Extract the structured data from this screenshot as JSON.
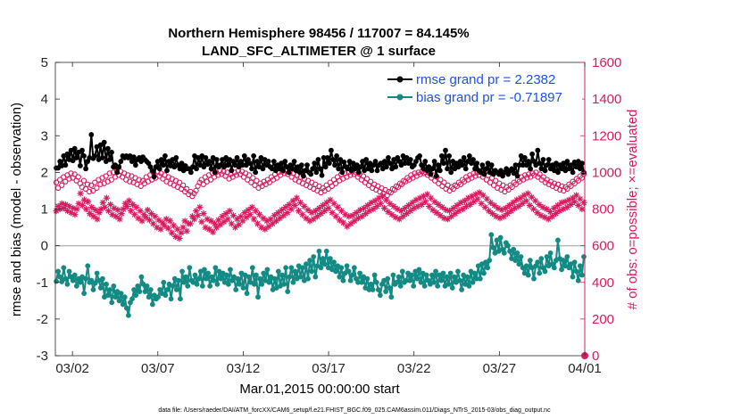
{
  "chart_data": {
    "type": "line",
    "title": "Northern Hemisphere 98456 / 117007 = 84.145%",
    "subtitle": "LAND_SFC_ALTIMETER @ 1 surface",
    "xlabel": "Mar.01,2015 00:00:00 start",
    "ylabel": "rmse and bias (model - observation)",
    "y2label": "# of obs: o=possible; ×=evaluated",
    "footer": "data file: /Users/raeder/DAI/ATM_forcXX/CAM6_setup/f.e21.FHIST_BGC.f09_025.CAM6assim.011/Diags_NTrS_2015-03/obs_diag_output.nc",
    "x_day_range": [
      0,
      31
    ],
    "xticks": [
      {
        "day": 1,
        "label": "03/02"
      },
      {
        "day": 6,
        "label": "03/07"
      },
      {
        "day": 11,
        "label": "03/12"
      },
      {
        "day": 16,
        "label": "03/17"
      },
      {
        "day": 21,
        "label": "03/22"
      },
      {
        "day": 26,
        "label": "03/27"
      },
      {
        "day": 31,
        "label": "04/01"
      }
    ],
    "ylim": [
      -3,
      5
    ],
    "yticks": [
      "-3",
      "-2",
      "-1",
      "0",
      "1",
      "2",
      "3",
      "4",
      "5"
    ],
    "y2lim": [
      0,
      1600
    ],
    "y2ticks": [
      "0",
      "200",
      "400",
      "600",
      "800",
      "1000",
      "1200",
      "1400",
      "1600"
    ],
    "zero_line": 0,
    "colors": {
      "rmse": "#000000",
      "bias": "#138a84",
      "obs": "#d81b60",
      "zero": "#b8b8b8",
      "legend_text": "#1f52e0"
    },
    "legend": {
      "position": "top-right",
      "entries": [
        "rmse grand pr = 2.2382",
        "bias grand pr = -0.71897"
      ]
    },
    "series": [
      {
        "name": "rmse",
        "axis": "left",
        "marker": "filled-circle",
        "values": [
          2.12,
          2.12,
          2.3,
          2.18,
          2.45,
          2.2,
          2.5,
          2.35,
          2.6,
          2.32,
          2.65,
          2.4,
          2.55,
          2.18,
          2.6,
          2.45,
          2.1,
          2.3,
          2.4,
          3.03,
          2.38,
          2.45,
          2.7,
          2.35,
          2.75,
          2.4,
          2.82,
          2.3,
          2.65,
          2.35,
          2.55,
          2.15,
          2.2,
          2.0,
          2.15,
          2.3,
          2.45,
          2.4,
          2.45,
          2.4,
          2.45,
          2.3,
          2.42,
          2.2,
          2.35,
          2.4,
          2.3,
          2.42,
          2.35,
          2.3,
          2.25,
          2.15,
          2.05,
          1.88,
          2.15,
          2.3,
          2.1,
          2.35,
          2.2,
          2.45,
          2.05,
          2.3,
          2.18,
          2.35,
          2.15,
          2.4,
          2.2,
          2.1,
          2.25,
          2.05,
          2.18,
          2.1,
          2.1,
          2.0,
          2.15,
          2.45,
          2.1,
          2.4,
          2.2,
          2.45,
          2.15,
          2.4,
          2.22,
          2.3,
          2.1,
          2.4,
          2.0,
          2.35,
          2.15,
          2.2,
          2.35,
          2.15,
          2.4,
          2.2,
          2.35,
          2.05,
          2.3,
          2.2,
          2.4,
          2.15,
          2.3,
          2.2,
          2.45,
          2.2,
          2.35,
          2.25,
          2.1,
          2.45,
          2.0,
          2.3,
          2.15,
          2.4,
          2.1,
          2.35,
          2.2,
          2.3,
          2.15,
          2.1,
          2.3,
          2.05,
          2.2,
          2.1,
          2.25,
          2.05,
          2.3,
          2.15,
          2.0,
          2.2,
          2.1,
          2.3,
          2.05,
          2.15,
          2.0,
          2.2,
          1.9,
          2.05,
          2.2,
          2.0,
          1.95,
          2.1,
          2.25,
          2.0,
          2.35,
          2.1,
          1.92,
          2.4,
          2.15,
          2.4,
          2.25,
          2.6,
          2.35,
          2.2,
          2.45,
          2.1,
          2.35,
          2.0,
          2.28,
          2.15,
          2.1,
          2.3,
          2.05,
          2.25,
          2.1,
          2.2,
          2.0,
          2.15,
          2.3,
          2.05,
          2.35,
          2.1,
          2.25,
          2.05,
          2.2,
          2.3,
          2.05,
          2.2,
          2.25,
          2.1,
          2.3,
          2.15,
          2.4,
          2.25,
          2.1,
          2.35,
          2.15,
          2.4,
          2.3,
          2.2,
          2.45,
          2.25,
          2.4,
          2.25,
          2.35,
          2.15,
          2.2,
          2.3,
          2.4,
          2.45,
          2.2,
          2.1,
          2.3,
          2.05,
          2.15,
          1.95,
          2.1,
          2.3,
          1.9,
          2.2,
          2.05,
          2.45,
          2.25,
          2.6,
          2.1,
          2.45,
          2.0,
          2.3,
          2.1,
          2.25,
          2.15,
          2.3,
          2.2,
          2.4,
          2.1,
          2.3,
          2.45,
          2.25,
          2.35,
          2.1,
          2.25,
          2.05,
          2.0,
          2.2,
          1.95,
          2.1,
          2.25,
          2.0,
          2.2,
          1.95,
          2.05,
          2.0,
          1.95,
          2.05,
          1.9,
          2.0,
          2.1,
          1.95,
          2.05,
          2.1,
          1.98,
          2.2,
          1.9,
          2.2,
          2.45,
          2.2,
          2.4,
          2.2,
          2.3,
          2.1,
          2.5,
          2.3,
          2.2,
          2.6,
          2.25,
          2.1,
          2.35,
          2.05,
          2.2,
          2.35,
          2.1,
          2.2,
          2.05,
          2.25,
          2.0,
          2.2,
          2.1,
          2.25,
          2.05,
          2.3,
          2.1,
          2.2,
          2.0,
          2.28,
          2.15,
          2.3,
          2.1,
          2.25,
          2.0
        ]
      },
      {
        "name": "bias",
        "axis": "left",
        "marker": "filled-circle",
        "values": [
          -0.97,
          -0.7,
          -0.85,
          -0.98,
          -0.6,
          -0.9,
          -1.05,
          -0.7,
          -0.85,
          -0.95,
          -0.8,
          -1.1,
          -0.9,
          -1.0,
          -0.85,
          -1.3,
          -0.9,
          -0.55,
          -1.0,
          -0.95,
          -1.2,
          -1.02,
          -0.75,
          -0.95,
          -1.15,
          -0.9,
          -1.4,
          -1.05,
          -1.35,
          -1.2,
          -1.55,
          -1.1,
          -1.4,
          -1.25,
          -1.5,
          -1.3,
          -1.6,
          -1.4,
          -1.7,
          -1.9,
          -1.55,
          -1.45,
          -1.2,
          -1.35,
          -1.1,
          -1.25,
          -0.85,
          -1.05,
          -1.25,
          -1.1,
          -1.4,
          -1.2,
          -1.6,
          -1.35,
          -1.45,
          -1.4,
          -1.2,
          -1.3,
          -1.0,
          -1.35,
          -1.2,
          -1.05,
          -1.45,
          -1.1,
          -0.9,
          -1.2,
          -0.95,
          -1.45,
          -0.7,
          -1.0,
          -0.85,
          -1.1,
          -0.6,
          -0.95,
          -1.0,
          -0.8,
          -1.05,
          -0.9,
          -0.7,
          -1.1,
          -0.65,
          -0.9,
          -0.75,
          -1.1,
          -0.85,
          -0.95,
          -0.6,
          -1.05,
          -0.7,
          -0.9,
          -0.75,
          -1.0,
          -0.8,
          -1.05,
          -0.65,
          -0.95,
          -0.85,
          -1.2,
          -0.9,
          -1.05,
          -0.75,
          -1.15,
          -0.8,
          -1.3,
          -0.85,
          -1.0,
          -0.6,
          -1.05,
          -0.8,
          -1.4,
          -0.9,
          -1.05,
          -0.75,
          -0.95,
          -0.65,
          -1.0,
          -0.85,
          -1.2,
          -0.9,
          -1.15,
          -0.7,
          -1.1,
          -0.8,
          -1.05,
          -0.6,
          -1.25,
          -0.85,
          -0.6,
          -1.0,
          -0.7,
          -0.9,
          -0.55,
          -0.85,
          -0.6,
          -0.95,
          -0.5,
          -0.9,
          -0.4,
          -0.7,
          -0.3,
          -0.85,
          -0.55,
          -0.15,
          -0.6,
          -0.35,
          -0.5,
          -0.15,
          -0.6,
          -0.35,
          -0.65,
          -0.45,
          -0.7,
          -0.55,
          -0.85,
          -0.6,
          -0.95,
          -0.75,
          -0.55,
          -0.7,
          -0.95,
          -0.8,
          -0.6,
          -0.9,
          -1.0,
          -0.75,
          -1.0,
          -0.85,
          -1.15,
          -0.9,
          -1.2,
          -1.05,
          -1.2,
          -0.8,
          -1.0,
          -1.2,
          -1.35,
          -1.05,
          -0.95,
          -1.25,
          -0.9,
          -1.15,
          -1.4,
          -0.8,
          -1.05,
          -1.0,
          -0.85,
          -1.1,
          -0.7,
          -1.0,
          -0.95,
          -0.75,
          -0.95,
          -0.8,
          -1.1,
          -0.7,
          -0.9,
          -0.65,
          -1.0,
          -0.75,
          -1.1,
          -0.8,
          -0.95,
          -1.05,
          -0.8,
          -1.0,
          -0.7,
          -1.1,
          -0.8,
          -0.95,
          -0.75,
          -1.1,
          -0.85,
          -1.05,
          -0.75,
          -1.15,
          -0.85,
          -1.0,
          -0.7,
          -0.95,
          -1.2,
          -0.8,
          -1.05,
          -0.85,
          -1.1,
          -0.7,
          -1.0,
          -0.75,
          -0.9,
          -0.55,
          -0.9,
          -0.5,
          -0.75,
          -0.45,
          -0.6,
          -0.4,
          0.3,
          -0.05,
          -0.2,
          0.15,
          -0.15,
          0.22,
          -0.1,
          -0.2,
          0.08,
          0.0,
          -0.15,
          -0.35,
          -0.1,
          -0.4,
          -0.2,
          -0.5,
          -0.3,
          -0.6,
          -0.75,
          -0.55,
          -0.8,
          -0.4,
          -0.6,
          -0.9,
          -0.55,
          -0.45,
          -0.75,
          -0.35,
          -0.6,
          -0.7,
          -0.3,
          -0.55,
          -0.2,
          -0.5,
          -0.6,
          -0.4,
          0.15,
          -0.35,
          -0.65,
          -0.4,
          -0.55,
          -0.3,
          -0.6,
          -0.5,
          -0.85,
          -0.45,
          -0.7,
          -0.95,
          -0.55,
          -0.8,
          -0.3
        ]
      },
      {
        "name": "obs possible",
        "axis": "right",
        "marker": "open-circle",
        "values": [
          945,
          915,
          960,
          930,
          975,
          950,
          985,
          965,
          995,
          970,
          990,
          955,
          975,
          940,
          920,
          955,
          910,
          935,
          895,
          930,
          900,
          945,
          915,
          960,
          935,
          970,
          940,
          980,
          950,
          995,
          960,
          1000,
          975,
          1010,
          985,
          1005,
          975,
          995,
          960,
          985,
          950,
          980,
          945,
          970,
          935,
          960,
          925,
          955,
          940,
          975,
          950,
          985,
          960,
          995,
          970,
          1005,
          980,
          995,
          965,
          985,
          950,
          975,
          940,
          965,
          930,
          955,
          920,
          945,
          910,
          930,
          895,
          910,
          880,
          895,
          870,
          885,
          900,
          925,
          945,
          960,
          935,
          975,
          950,
          985,
          960,
          995,
          975,
          1000,
          985,
          1010,
          990,
          1005,
          980,
          1000,
          965,
          990,
          975,
          1000,
          985,
          1010,
          990,
          1005,
          975,
          995,
          960,
          985,
          945,
          970,
          930,
          955,
          915,
          940,
          925,
          950,
          935,
          960,
          945,
          975,
          960,
          990,
          970,
          1000,
          985,
          1005,
          995,
          1010,
          990,
          1000,
          975,
          995,
          960,
          985,
          950,
          975,
          940,
          965,
          930,
          955,
          920,
          945,
          910,
          935,
          900,
          925,
          890,
          915,
          900,
          930,
          910,
          945,
          925,
          960,
          940,
          975,
          955,
          990,
          965,
          995,
          975,
          1000,
          985,
          1005,
          990,
          1000,
          975,
          990,
          960,
          980,
          945,
          965,
          930,
          950,
          915,
          935,
          905,
          925,
          895,
          915,
          885,
          905,
          875,
          895,
          890,
          910,
          905,
          925,
          920,
          940,
          935,
          955,
          950,
          970,
          960,
          985,
          970,
          995,
          980,
          1000,
          990,
          1005,
          995,
          1000,
          985,
          995,
          970,
          985,
          955,
          975,
          940,
          960,
          925,
          945,
          910,
          930,
          900,
          920,
          910,
          930,
          925,
          945,
          935,
          960,
          950,
          975,
          960,
          985,
          970,
          995,
          980,
          1000,
          985,
          1005,
          975,
          995,
          960,
          985,
          945,
          970,
          930,
          955,
          915,
          940,
          905,
          930,
          895,
          920,
          905,
          930,
          920,
          945,
          935,
          960,
          950,
          975,
          960,
          985,
          970,
          990,
          975,
          995,
          985,
          1000,
          975,
          990,
          960,
          975,
          945,
          960,
          935,
          950,
          925,
          940,
          915,
          935,
          905,
          925,
          900,
          920,
          910,
          935,
          925,
          950,
          940,
          965,
          955,
          980,
          970,
          990
        ]
      },
      {
        "name": "obs evaluated",
        "axis": "right",
        "marker": "asterisk",
        "values": [
          790,
          815,
          800,
          830,
          805,
          825,
          790,
          815,
          780,
          805,
          770,
          800,
          830,
          885,
          820,
          850,
          800,
          840,
          775,
          810,
          760,
          795,
          745,
          780,
          800,
          835,
          810,
          860,
          790,
          825,
          770,
          805,
          760,
          795,
          745,
          775,
          800,
          830,
          815,
          845,
          790,
          825,
          770,
          810,
          750,
          790,
          735,
          770,
          755,
          795,
          740,
          775,
          720,
          760,
          700,
          740,
          690,
          725,
          710,
          745,
          695,
          735,
          670,
          710,
          650,
          690,
          640,
          670,
          700,
          735,
          680,
          720,
          720,
          760,
          745,
          790,
          765,
          810,
          730,
          775,
          700,
          745,
          690,
          735,
          675,
          720,
          700,
          740,
          715,
          760,
          730,
          775,
          745,
          790,
          720,
          765,
          700,
          745,
          715,
          760,
          735,
          780,
          755,
          795,
          770,
          810,
          745,
          790,
          720,
          770,
          700,
          750,
          690,
          735,
          705,
          745,
          720,
          765,
          735,
          780,
          750,
          795,
          765,
          810,
          780,
          825,
          800,
          845,
          820,
          860,
          790,
          835,
          770,
          815,
          750,
          795,
          735,
          780,
          745,
          790,
          760,
          805,
          775,
          820,
          790,
          835,
          805,
          850,
          780,
          830,
          760,
          810,
          740,
          790,
          725,
          770,
          705,
          760,
          720,
          765,
          735,
          780,
          750,
          795,
          760,
          805,
          775,
          820,
          790,
          835,
          800,
          845,
          815,
          860,
          830,
          870,
          805,
          850,
          785,
          830,
          770,
          815,
          755,
          800,
          745,
          790,
          760,
          805,
          775,
          820,
          790,
          835,
          805,
          850,
          815,
          860,
          825,
          870,
          840,
          880,
          815,
          860,
          795,
          840,
          780,
          825,
          765,
          810,
          750,
          795,
          745,
          790,
          760,
          805,
          775,
          820,
          790,
          835,
          800,
          845,
          815,
          860,
          825,
          870,
          840,
          880,
          855,
          890,
          830,
          875,
          810,
          855,
          790,
          835,
          775,
          820,
          760,
          805,
          750,
          795,
          760,
          805,
          775,
          820,
          790,
          835,
          805,
          850,
          815,
          860,
          830,
          875,
          845,
          885,
          820,
          865,
          800,
          845,
          780,
          825,
          765,
          810,
          755,
          800,
          745,
          785,
          760,
          805,
          775,
          820,
          790,
          835,
          800,
          840,
          810,
          850,
          825,
          860,
          840,
          875,
          820,
          855,
          800,
          835
        ]
      }
    ]
  }
}
